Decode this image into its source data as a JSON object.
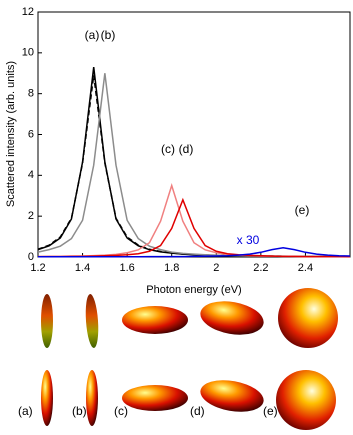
{
  "chart_data": {
    "type": "line",
    "xlabel": "Photon energy (eV)",
    "ylabel": "Scattered intensity (arb. units)",
    "x": [
      1.2,
      1.25,
      1.3,
      1.35,
      1.4,
      1.45,
      1.5,
      1.55,
      1.6,
      1.65,
      1.7,
      1.75,
      1.8,
      1.85,
      1.9,
      1.95,
      2.0,
      2.05,
      2.1,
      2.15,
      2.2,
      2.25,
      2.3,
      2.35,
      2.4,
      2.45,
      2.5,
      2.55,
      2.6
    ],
    "series": [
      {
        "color": "#000000",
        "dash": false,
        "values": [
          0.36,
          0.55,
          0.93,
          1.86,
          4.65,
          9.3,
          4.65,
          1.86,
          0.93,
          0.55,
          0.36,
          0.25,
          0.19,
          0.14,
          0.11,
          0.09,
          0.08,
          0.06,
          0.05,
          0.05,
          0.04,
          0.04,
          0.03,
          0.03,
          0.03,
          0.02,
          0.02,
          0.02,
          0.02
        ]
      },
      {
        "color": "#000000",
        "dash": true,
        "values": [
          0.38,
          0.58,
          0.98,
          1.9,
          4.6,
          8.9,
          4.6,
          1.9,
          0.98,
          0.58,
          0.38,
          0.27,
          0.2,
          0.15,
          0.12,
          0.1,
          0.08,
          0.07,
          0.06,
          0.05,
          0.05,
          0.04,
          0.04,
          0.03,
          0.03,
          0.03,
          0.02,
          0.02,
          0.02
        ]
      },
      {
        "color": "#8c8c8c",
        "dash": false,
        "values": [
          0.24,
          0.36,
          0.53,
          0.9,
          1.8,
          4.5,
          9.0,
          4.5,
          1.8,
          0.9,
          0.53,
          0.36,
          0.24,
          0.18,
          0.14,
          0.11,
          0.09,
          0.07,
          0.06,
          0.05,
          0.04,
          0.04,
          0.04,
          0.03,
          0.03,
          0.03,
          0.02,
          0.02,
          0.02
        ]
      },
      {
        "color": "#f08080",
        "dash": false,
        "values": [
          0.02,
          0.03,
          0.03,
          0.04,
          0.05,
          0.07,
          0.09,
          0.13,
          0.21,
          0.35,
          0.7,
          1.75,
          3.5,
          1.75,
          0.7,
          0.35,
          0.21,
          0.13,
          0.09,
          0.07,
          0.05,
          0.04,
          0.03,
          0.03,
          0.02,
          0.02,
          0.02,
          0.02,
          0.01
        ]
      },
      {
        "color": "#e00000",
        "dash": false,
        "values": [
          0.02,
          0.02,
          0.02,
          0.03,
          0.03,
          0.04,
          0.06,
          0.08,
          0.11,
          0.16,
          0.28,
          0.56,
          1.4,
          2.8,
          1.4,
          0.56,
          0.28,
          0.16,
          0.11,
          0.08,
          0.06,
          0.04,
          0.03,
          0.03,
          0.02,
          0.02,
          0.02,
          0.02,
          0.01
        ]
      },
      {
        "color": "#0000e0",
        "dash": false,
        "values": [
          0.01,
          0.01,
          0.01,
          0.01,
          0.01,
          0.01,
          0.01,
          0.01,
          0.01,
          0.01,
          0.02,
          0.02,
          0.02,
          0.02,
          0.03,
          0.04,
          0.05,
          0.06,
          0.09,
          0.14,
          0.23,
          0.36,
          0.45,
          0.36,
          0.23,
          0.14,
          0.09,
          0.06,
          0.05
        ]
      }
    ],
    "annotations": [
      "(a)",
      "(b)",
      "(c)",
      "(d)",
      "(e)",
      "x 30"
    ],
    "xlim": [
      1.2,
      2.6
    ],
    "xticks": [
      1.2,
      1.4,
      1.6,
      1.8,
      2,
      2.2,
      2.4
    ],
    "ylim": [
      0,
      12
    ],
    "yticks": [
      0,
      2,
      4,
      6,
      8,
      10,
      12
    ]
  },
  "shapes": {
    "labels": [
      "(a)",
      "(b)",
      "(c)",
      "(d)",
      "(e)"
    ]
  }
}
